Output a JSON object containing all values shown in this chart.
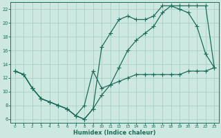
{
  "xlabel": "Humidex (Indice chaleur)",
  "bg_color": "#cce8e0",
  "line_color": "#1a6b5a",
  "grid_color": "#aacfc8",
  "xlim": [
    -0.5,
    23.5
  ],
  "ylim": [
    5.5,
    23.0
  ],
  "xticks": [
    0,
    1,
    2,
    3,
    4,
    5,
    6,
    7,
    8,
    9,
    10,
    11,
    12,
    13,
    14,
    15,
    16,
    17,
    18,
    19,
    20,
    21,
    22,
    23
  ],
  "yticks": [
    6,
    8,
    10,
    12,
    14,
    16,
    18,
    20,
    22
  ],
  "line1_x": [
    0,
    1,
    2,
    3,
    4,
    5,
    6,
    7,
    8,
    9,
    10,
    11,
    12,
    13,
    14,
    15,
    16,
    17,
    18,
    19,
    20,
    21,
    22,
    23
  ],
  "line1_y": [
    13,
    12.5,
    10.5,
    9,
    8.5,
    8.0,
    7.5,
    6.5,
    8.0,
    13,
    10.5,
    11.0,
    11.5,
    12.0,
    12.5,
    12.5,
    12.5,
    12.5,
    12.5,
    12.5,
    13.0,
    13.0,
    13.0,
    13.5
  ],
  "line2_x": [
    0,
    1,
    2,
    3,
    4,
    5,
    6,
    7,
    8,
    9,
    10,
    11,
    12,
    13,
    14,
    15,
    16,
    17,
    18,
    19,
    20,
    21,
    22,
    23
  ],
  "line2_y": [
    13,
    12.5,
    10.5,
    9.0,
    8.5,
    8.0,
    7.5,
    6.5,
    6.0,
    7.5,
    16.5,
    18.5,
    20.5,
    21.0,
    20.5,
    20.5,
    21.0,
    22.5,
    22.5,
    22.0,
    21.5,
    19.5,
    15.5,
    13.5
  ],
  "line3_x": [
    0,
    1,
    2,
    3,
    4,
    5,
    6,
    7,
    8,
    9,
    10,
    11,
    12,
    13,
    14,
    15,
    16,
    17,
    18,
    19,
    20,
    21,
    22,
    23
  ],
  "line3_y": [
    13,
    12.5,
    10.5,
    9.0,
    8.5,
    8.0,
    7.5,
    6.5,
    6.0,
    7.5,
    9.5,
    11.0,
    13.5,
    16.0,
    17.5,
    18.5,
    19.5,
    21.5,
    22.5,
    22.5,
    22.5,
    22.5,
    22.5,
    13.5
  ]
}
